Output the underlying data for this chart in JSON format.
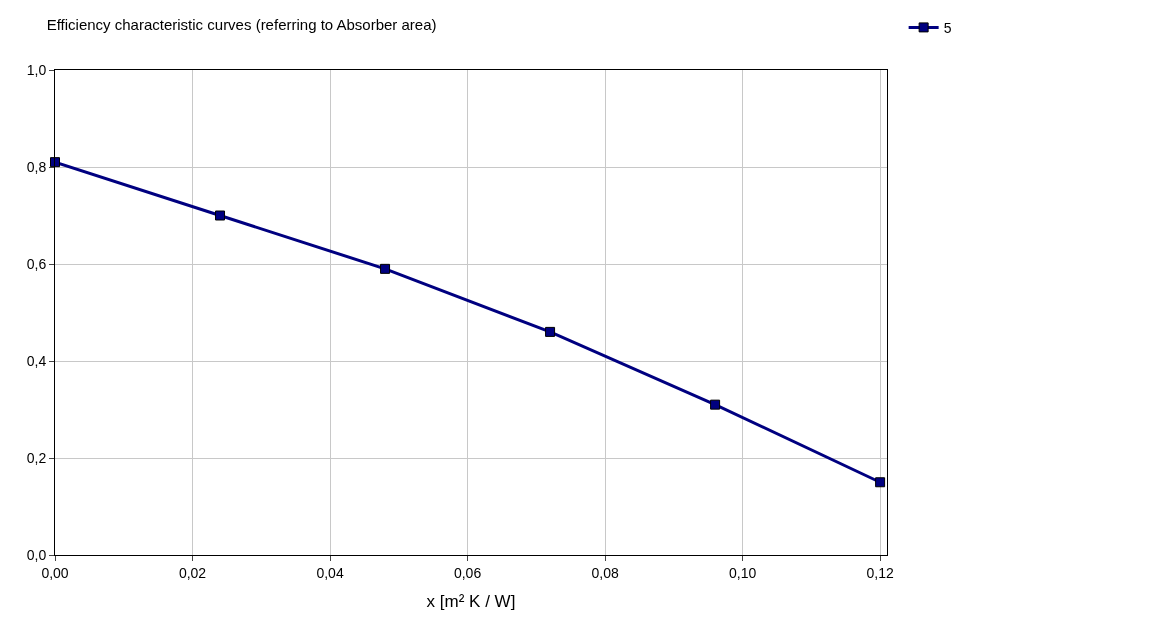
{
  "chart_data": {
    "type": "line",
    "title": "Efficiency characteristic curves (referring to Absorber area)",
    "xlabel": "x [m² K / W]",
    "x": [
      0,
      0.024,
      0.048,
      0.072,
      0.096,
      0.12
    ],
    "series": [
      {
        "name": "5",
        "color": "#000080",
        "values": [
          0.81,
          0.7,
          0.59,
          0.46,
          0.31,
          0.15
        ]
      }
    ],
    "xlim": [
      0,
      0.121
    ],
    "ylim": [
      0,
      1.0
    ],
    "xticks": [
      {
        "value": 0,
        "label": "0,00"
      },
      {
        "value": 0.02,
        "label": "0,02"
      },
      {
        "value": 0.04,
        "label": "0,04"
      },
      {
        "value": 0.06,
        "label": "0,06"
      },
      {
        "value": 0.08,
        "label": "0,08"
      },
      {
        "value": 0.1,
        "label": "0,10"
      },
      {
        "value": 0.12,
        "label": "0,12"
      }
    ],
    "yticks": [
      {
        "value": 0,
        "label": "0,0"
      },
      {
        "value": 0.2,
        "label": "0,2"
      },
      {
        "value": 0.4,
        "label": "0,4"
      },
      {
        "value": 0.6,
        "label": "0,6"
      },
      {
        "value": 0.8,
        "label": "0,8"
      },
      {
        "value": 1.0,
        "label": "1,0"
      }
    ],
    "grid": true,
    "legend": "top right",
    "marker": "square",
    "line_style": "solid"
  }
}
